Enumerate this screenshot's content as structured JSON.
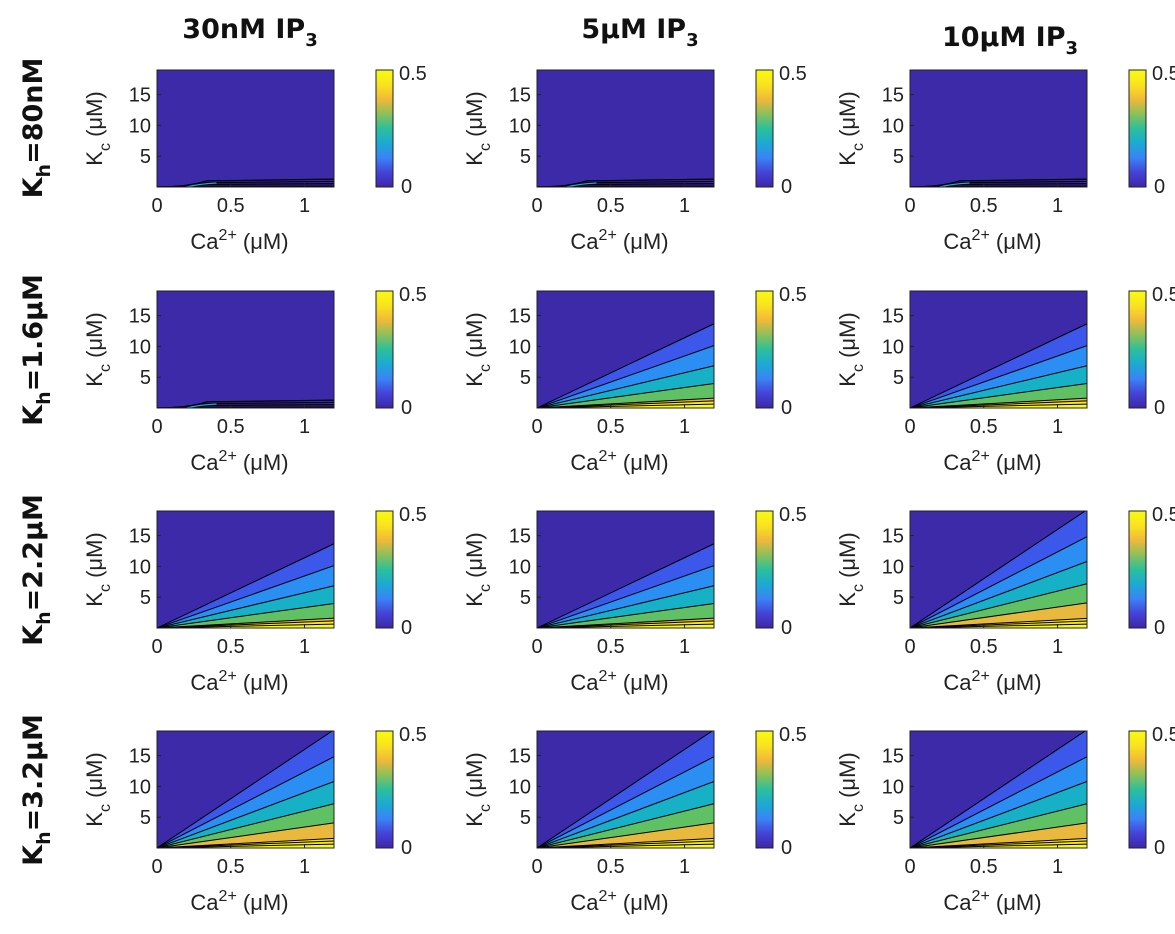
{
  "columns": [
    {
      "label": "30nM IP",
      "sub": "3"
    },
    {
      "label": "5μM IP",
      "sub": "3"
    },
    {
      "label": "10μM IP",
      "sub": "3"
    }
  ],
  "rows": [
    {
      "label_pre": "K",
      "label_sub": "h",
      "label_post": "=80nM"
    },
    {
      "label_pre": "K",
      "label_sub": "h",
      "label_post": "=1.6μM"
    },
    {
      "label_pre": "K",
      "label_sub": "h",
      "label_post": "=2.2μM"
    },
    {
      "label_pre": "K",
      "label_sub": "h",
      "label_post": "=3.2μM"
    }
  ],
  "axes": {
    "x_label": {
      "base": "Ca",
      "sup": "2+",
      "unit": " (μM)"
    },
    "y_label": {
      "base": "K",
      "sub": "c",
      "unit": " (μM)"
    }
  },
  "colors": {
    "zero": "#3d2aa8",
    "colorbar_stops": [
      "#3e26a8",
      "#4443d8",
      "#3a83f7",
      "#1caad3",
      "#2bc09a",
      "#8cc05a",
      "#f0b93a",
      "#f9e31f",
      "#f9fb0e"
    ],
    "contour_line": "#000000"
  },
  "chart_data": [
    {
      "type": "heatmap",
      "row": 0,
      "col": 0,
      "xlabel": "Ca2+ (μM)",
      "ylabel": "Kc (μM)",
      "xlim": [
        0,
        1.2
      ],
      "ylim": [
        0,
        19
      ],
      "xticks": [
        "0",
        "0.5",
        "1"
      ],
      "yticks": [
        "5",
        "10",
        "15"
      ],
      "colorbar": {
        "min": "0",
        "max": "0.5"
      },
      "slope_max": 0,
      "n_levels": 0
    },
    {
      "type": "heatmap",
      "row": 0,
      "col": 1,
      "xlabel": "Ca2+ (μM)",
      "ylabel": "Kc (μM)",
      "xlim": [
        0,
        1.2
      ],
      "ylim": [
        0,
        19
      ],
      "xticks": [
        "0",
        "0.5",
        "1"
      ],
      "yticks": [
        "5",
        "10",
        "15"
      ],
      "colorbar": {
        "min": "0",
        "max": "0.5"
      },
      "slope_max": 0,
      "n_levels": 0
    },
    {
      "type": "heatmap",
      "row": 0,
      "col": 2,
      "xlabel": "Ca2+ (μM)",
      "ylabel": "Kc (μM)",
      "xlim": [
        0,
        1.2
      ],
      "ylim": [
        0,
        19
      ],
      "xticks": [
        "0",
        "0.5",
        "1"
      ],
      "yticks": [
        "5",
        "10",
        "15"
      ],
      "colorbar": {
        "min": "0",
        "max": "0.5"
      },
      "slope_max": 0,
      "n_levels": 0
    },
    {
      "type": "heatmap",
      "row": 1,
      "col": 0,
      "xlabel": "Ca2+ (μM)",
      "ylabel": "Kc (μM)",
      "xlim": [
        0,
        1.2
      ],
      "ylim": [
        0,
        19
      ],
      "xticks": [
        "0",
        "0.5",
        "1"
      ],
      "yticks": [
        "5",
        "10",
        "15"
      ],
      "colorbar": {
        "min": "0",
        "max": "0.5"
      },
      "slope_max": 0,
      "n_levels": 0
    },
    {
      "type": "heatmap",
      "row": 1,
      "col": 1,
      "xlabel": "Ca2+ (μM)",
      "ylabel": "Kc (μM)",
      "xlim": [
        0,
        1.2
      ],
      "ylim": [
        0,
        19
      ],
      "xticks": [
        "0",
        "0.5",
        "1"
      ],
      "yticks": [
        "5",
        "10",
        "15"
      ],
      "colorbar": {
        "min": "0",
        "max": "0.5"
      },
      "slope_max": 11.4,
      "n_levels": 6
    },
    {
      "type": "heatmap",
      "row": 1,
      "col": 2,
      "xlabel": "Ca2+ (μM)",
      "ylabel": "Kc (μM)",
      "xlim": [
        0,
        1.2
      ],
      "ylim": [
        0,
        19
      ],
      "xticks": [
        "0",
        "0.5",
        "1"
      ],
      "yticks": [
        "5",
        "10",
        "15"
      ],
      "colorbar": {
        "min": "0",
        "max": "0.5"
      },
      "slope_max": 11.4,
      "n_levels": 6
    },
    {
      "type": "heatmap",
      "row": 2,
      "col": 0,
      "xlabel": "Ca2+ (μM)",
      "ylabel": "Kc (μM)",
      "xlim": [
        0,
        1.2
      ],
      "ylim": [
        0,
        19
      ],
      "xticks": [
        "0",
        "0.5",
        "1"
      ],
      "yticks": [
        "5",
        "10",
        "15"
      ],
      "colorbar": {
        "min": "0",
        "max": "0.5"
      },
      "slope_max": 11.4,
      "n_levels": 6
    },
    {
      "type": "heatmap",
      "row": 2,
      "col": 1,
      "xlabel": "Ca2+ (μM)",
      "ylabel": "Kc (μM)",
      "xlim": [
        0,
        1.2
      ],
      "ylim": [
        0,
        19
      ],
      "xticks": [
        "0",
        "0.5",
        "1"
      ],
      "yticks": [
        "5",
        "10",
        "15"
      ],
      "colorbar": {
        "min": "0",
        "max": "0.5"
      },
      "slope_max": 11.4,
      "n_levels": 6
    },
    {
      "type": "heatmap",
      "row": 2,
      "col": 2,
      "xlabel": "Ca2+ (μM)",
      "ylabel": "Kc (μM)",
      "xlim": [
        0,
        1.2
      ],
      "ylim": [
        0,
        19
      ],
      "xticks": [
        "0",
        "0.5",
        "1"
      ],
      "yticks": [
        "5",
        "10",
        "15"
      ],
      "colorbar": {
        "min": "0",
        "max": "0.5"
      },
      "slope_max": 16.0,
      "n_levels": 7
    },
    {
      "type": "heatmap",
      "row": 3,
      "col": 0,
      "xlabel": "Ca2+ (μM)",
      "ylabel": "Kc (μM)",
      "xlim": [
        0,
        1.2
      ],
      "ylim": [
        0,
        19
      ],
      "xticks": [
        "0",
        "0.5",
        "1"
      ],
      "yticks": [
        "5",
        "10",
        "15"
      ],
      "colorbar": {
        "min": "0",
        "max": "0.5"
      },
      "slope_max": 16.0,
      "n_levels": 7
    },
    {
      "type": "heatmap",
      "row": 3,
      "col": 1,
      "xlabel": "Ca2+ (μM)",
      "ylabel": "Kc (μM)",
      "xlim": [
        0,
        1.2
      ],
      "ylim": [
        0,
        19
      ],
      "xticks": [
        "0",
        "0.5",
        "1"
      ],
      "yticks": [
        "5",
        "10",
        "15"
      ],
      "colorbar": {
        "min": "0",
        "max": "0.5"
      },
      "slope_max": 16.0,
      "n_levels": 7
    },
    {
      "type": "heatmap",
      "row": 3,
      "col": 2,
      "xlabel": "Ca2+ (μM)",
      "ylabel": "Kc (μM)",
      "xlim": [
        0,
        1.2
      ],
      "ylim": [
        0,
        19
      ],
      "xticks": [
        "0",
        "0.5",
        "1"
      ],
      "yticks": [
        "5",
        "10",
        "15"
      ],
      "colorbar": {
        "min": "0",
        "max": "0.5"
      },
      "slope_max": 16.0,
      "n_levels": 7
    }
  ]
}
